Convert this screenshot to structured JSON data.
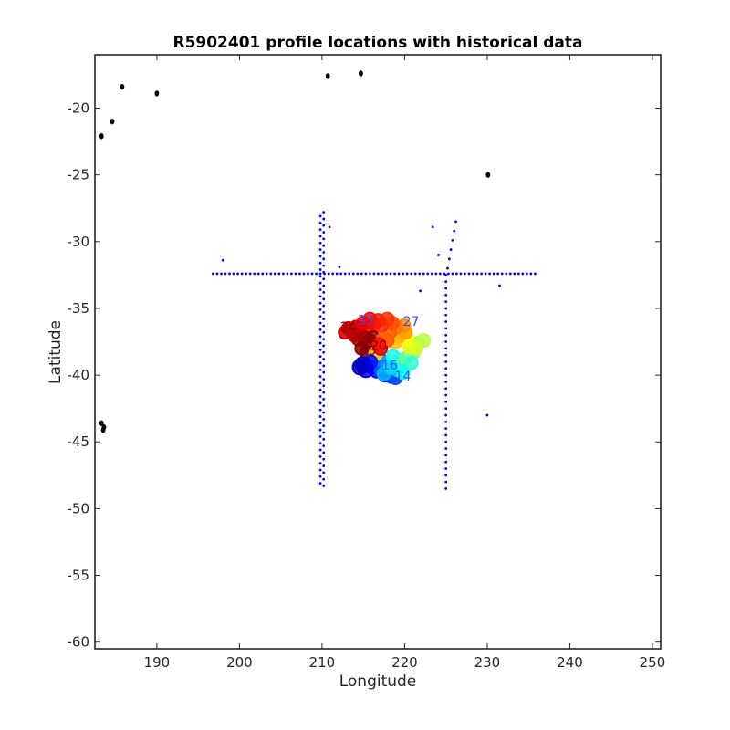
{
  "chart_data": {
    "type": "scatter",
    "title": "R5902401 profile locations with historical data",
    "xlabel": "Longitude",
    "ylabel": "Latitude",
    "xlim": [
      182.5,
      251
    ],
    "ylim": [
      -60.5,
      -16
    ],
    "x_ticks": [
      190,
      200,
      210,
      220,
      230,
      240,
      250
    ],
    "y_ticks": [
      -60,
      -55,
      -50,
      -45,
      -40,
      -35,
      -30,
      -25,
      -20
    ],
    "grid": false,
    "series": [
      {
        "marker": "land",
        "color": "#000000",
        "points": [
          [
            185.8,
            -18.4
          ],
          [
            190.0,
            -18.9
          ],
          [
            184.6,
            -21.0
          ],
          [
            183.3,
            -22.1
          ],
          [
            210.7,
            -17.6
          ],
          [
            214.7,
            -17.4
          ],
          [
            230.1,
            -25.0
          ],
          [
            183.3,
            -43.6
          ],
          [
            183.6,
            -43.9
          ],
          [
            183.5,
            -44.1
          ]
        ]
      },
      {
        "marker": "historical",
        "color": "#0000ff",
        "points": [
          [
            198.0,
            -31.4
          ],
          [
            210.9,
            -28.9
          ],
          [
            212.1,
            -31.9
          ],
          [
            221.9,
            -33.7
          ],
          [
            223.4,
            -28.9
          ],
          [
            224.1,
            -31.0
          ],
          [
            226.2,
            -28.5
          ],
          [
            226.0,
            -29.2
          ],
          [
            225.8,
            -29.9
          ],
          [
            225.6,
            -30.6
          ],
          [
            225.4,
            -31.3
          ],
          [
            225.2,
            -32.0
          ],
          [
            231.5,
            -33.3
          ],
          [
            230.0,
            -43.0
          ]
        ],
        "lines": [
          {
            "orientation": "horizontal",
            "y": -32.4,
            "x_from": 196.8,
            "x_to": 236.0,
            "step": 0.5
          },
          {
            "orientation": "vertical",
            "x": 209.8,
            "y_from": -48.1,
            "y_to": -27.8,
            "step": 0.5
          },
          {
            "orientation": "vertical",
            "x": 210.2,
            "y_from": -48.3,
            "y_to": -27.7,
            "step": 0.5
          },
          {
            "orientation": "vertical",
            "x": 225.0,
            "y_from": -48.5,
            "y_to": -32.4,
            "step": 0.5
          }
        ]
      },
      {
        "marker": "profiles",
        "colormap": "jet",
        "points": [
          [
            216.0,
            -39.3,
            0.1
          ],
          [
            216.6,
            -39.7,
            0.12
          ],
          [
            217.6,
            -40.0,
            0.15
          ],
          [
            218.4,
            -40.1,
            0.18
          ],
          [
            218.9,
            -40.2,
            0.2
          ],
          [
            216.9,
            -39.4,
            0.22
          ],
          [
            217.2,
            -38.9,
            0.25
          ],
          [
            218.0,
            -39.3,
            0.28
          ],
          [
            219.1,
            -39.6,
            0.32
          ],
          [
            219.4,
            -38.9,
            0.36
          ],
          [
            218.6,
            -38.6,
            0.4
          ],
          [
            219.7,
            -39.2,
            0.44
          ],
          [
            220.2,
            -38.7,
            0.48
          ],
          [
            221.1,
            -38.3,
            0.5
          ],
          [
            221.6,
            -37.6,
            0.53
          ],
          [
            222.3,
            -37.4,
            0.56
          ],
          [
            221.4,
            -38.0,
            0.58
          ],
          [
            220.6,
            -37.9,
            0.6
          ],
          [
            220.3,
            -37.2,
            0.62
          ],
          [
            219.6,
            -36.7,
            0.65
          ],
          [
            218.9,
            -37.5,
            0.68
          ],
          [
            219.3,
            -37.1,
            0.7
          ],
          [
            220.1,
            -36.8,
            0.72
          ],
          [
            219.9,
            -36.3,
            0.74
          ],
          [
            219.0,
            -36.4,
            0.76
          ],
          [
            218.2,
            -36.8,
            0.78
          ],
          [
            217.9,
            -37.4,
            0.79
          ],
          [
            218.5,
            -36.1,
            0.8
          ],
          [
            217.9,
            -35.8,
            0.82
          ],
          [
            217.2,
            -36.3,
            0.83
          ],
          [
            216.8,
            -35.9,
            0.84
          ],
          [
            216.3,
            -36.2,
            0.85
          ],
          [
            215.8,
            -35.8,
            0.86
          ],
          [
            215.5,
            -36.4,
            0.87
          ],
          [
            215.0,
            -36.1,
            0.88
          ],
          [
            214.6,
            -36.5,
            0.89
          ],
          [
            214.1,
            -36.4,
            0.9
          ],
          [
            213.6,
            -36.7,
            0.91
          ],
          [
            213.2,
            -36.5,
            0.92
          ],
          [
            212.8,
            -36.8,
            0.93
          ],
          [
            213.9,
            -37.0,
            0.94
          ],
          [
            214.4,
            -37.3,
            0.95
          ],
          [
            215.2,
            -37.2,
            0.96
          ],
          [
            215.7,
            -37.4,
            0.97
          ],
          [
            216.2,
            -37.2,
            0.98
          ],
          [
            214.8,
            -38.0,
            0.99
          ],
          [
            215.4,
            -38.3,
            1.0
          ],
          [
            216.5,
            -38.4,
            0.66
          ],
          [
            217.1,
            -38.0,
            0.9
          ],
          [
            217.4,
            -37.3,
            0.78
          ],
          [
            216.9,
            -37.7,
            0.86
          ],
          [
            215.9,
            -39.0,
            0.14
          ],
          [
            214.9,
            -39.2,
            0.08
          ],
          [
            215.3,
            -39.6,
            0.11
          ],
          [
            214.6,
            -39.4,
            0.06
          ],
          [
            217.5,
            -39.9,
            0.3
          ],
          [
            218.3,
            -39.4,
            0.34
          ],
          [
            219.8,
            -39.8,
            0.38
          ],
          [
            220.8,
            -39.1,
            0.42
          ]
        ],
        "labels": [
          {
            "text": "24",
            "x": 212.2,
            "y": -36.7
          },
          {
            "text": "25",
            "x": 214.6,
            "y": -38.5
          },
          {
            "text": "20",
            "x": 215.9,
            "y": -38.1
          },
          {
            "text": "27",
            "x": 219.8,
            "y": -36.3
          },
          {
            "text": "14",
            "x": 218.8,
            "y": -40.4
          },
          {
            "text": "16",
            "x": 217.2,
            "y": -39.6
          },
          {
            "text": "33",
            "x": 214.3,
            "y": -36.2
          }
        ]
      }
    ]
  }
}
